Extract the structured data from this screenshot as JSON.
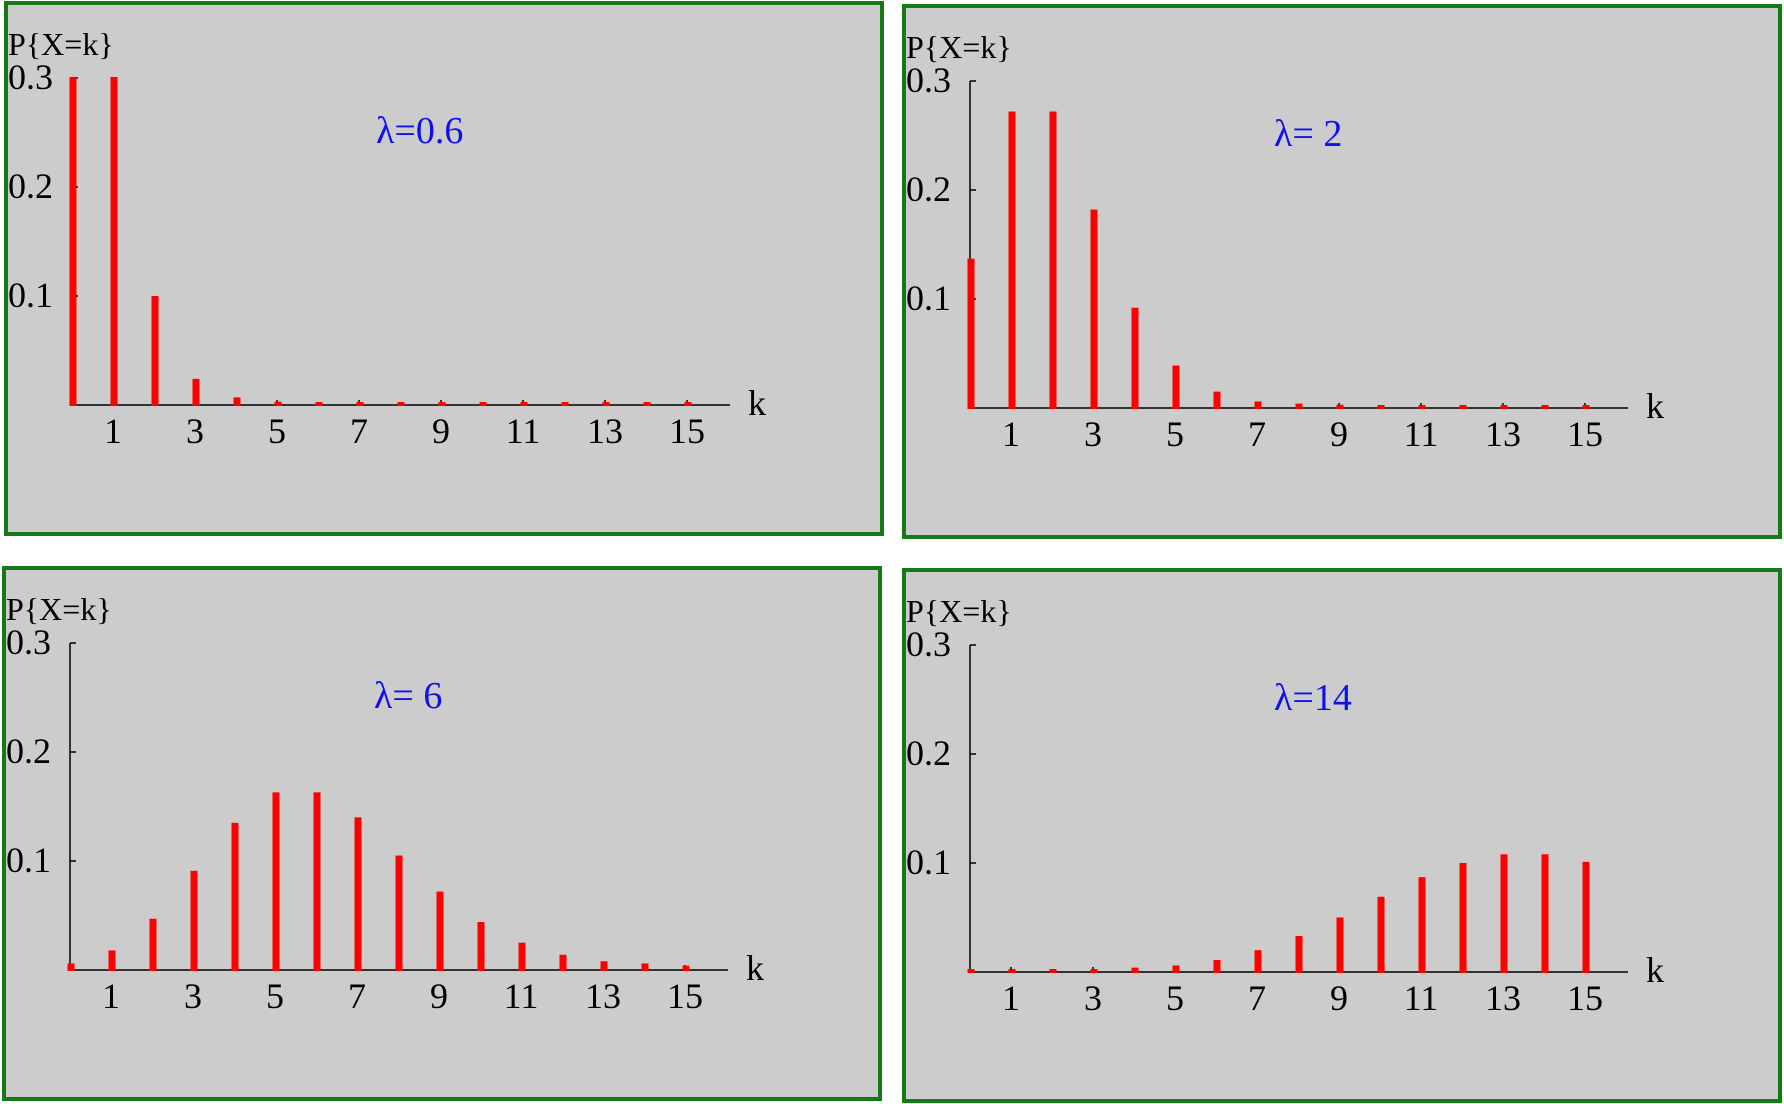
{
  "colors": {
    "bar": "#ff0000",
    "lambda_text": "#1010ee",
    "panel_bg": "#cccccc",
    "panel_border": "#157a15"
  },
  "chart_data": [
    {
      "type": "bar",
      "ylabel": "P{X=k}",
      "xlabel": "k",
      "annotation": "λ=0.6",
      "ylim": [
        0,
        0.3
      ],
      "yticks": [
        "0.1",
        "0.2",
        "0.3"
      ],
      "xticks": [
        "1",
        "3",
        "5",
        "7",
        "9",
        "11",
        "13",
        "15"
      ],
      "x": [
        0,
        1,
        2,
        3,
        4,
        5,
        6,
        7,
        8,
        9,
        10,
        11,
        12,
        13,
        14,
        15
      ],
      "values": [
        0.301,
        0.301,
        0.1,
        0.024,
        0.007,
        0.003,
        0.002,
        0.002,
        0.002,
        0.002,
        0.002,
        0.002,
        0.002,
        0.002,
        0.002,
        0.002
      ],
      "grid": false
    },
    {
      "type": "bar",
      "ylabel": "P{X=k}",
      "xlabel": "k",
      "annotation": "λ= 2",
      "ylim": [
        0,
        0.3
      ],
      "yticks": [
        "0.1",
        "0.2",
        "0.3"
      ],
      "xticks": [
        "1",
        "3",
        "5",
        "7",
        "9",
        "11",
        "13",
        "15"
      ],
      "x": [
        0,
        1,
        2,
        3,
        4,
        5,
        6,
        7,
        8,
        9,
        10,
        11,
        12,
        13,
        14,
        15
      ],
      "values": [
        0.137,
        0.272,
        0.272,
        0.182,
        0.092,
        0.039,
        0.015,
        0.006,
        0.004,
        0.003,
        0.002,
        0.002,
        0.002,
        0.002,
        0.002,
        0.002
      ],
      "grid": false
    },
    {
      "type": "bar",
      "ylabel": "P{X=k}",
      "xlabel": "k",
      "annotation": "λ= 6",
      "ylim": [
        0,
        0.3
      ],
      "yticks": [
        "0.1",
        "0.2",
        "0.3"
      ],
      "xticks": [
        "1",
        "3",
        "5",
        "7",
        "9",
        "11",
        "13",
        "15"
      ],
      "x": [
        0,
        1,
        2,
        3,
        4,
        5,
        6,
        7,
        8,
        9,
        10,
        11,
        12,
        13,
        14,
        15
      ],
      "values": [
        0.006,
        0.018,
        0.047,
        0.091,
        0.135,
        0.163,
        0.163,
        0.14,
        0.105,
        0.072,
        0.044,
        0.025,
        0.014,
        0.008,
        0.006,
        0.004
      ],
      "grid": false
    },
    {
      "type": "bar",
      "ylabel": "P{X=k}",
      "xlabel": "k",
      "annotation": "λ=14",
      "ylim": [
        0,
        0.3
      ],
      "yticks": [
        "0.1",
        "0.2",
        "0.3"
      ],
      "xticks": [
        "1",
        "3",
        "5",
        "7",
        "9",
        "11",
        "13",
        "15"
      ],
      "x": [
        0,
        1,
        2,
        3,
        4,
        5,
        6,
        7,
        8,
        9,
        10,
        11,
        12,
        13,
        14,
        15
      ],
      "values": [
        0.001,
        0.001,
        0.001,
        0.002,
        0.004,
        0.006,
        0.011,
        0.02,
        0.033,
        0.05,
        0.069,
        0.087,
        0.1,
        0.108,
        0.108,
        0.101
      ],
      "grid": false
    }
  ]
}
